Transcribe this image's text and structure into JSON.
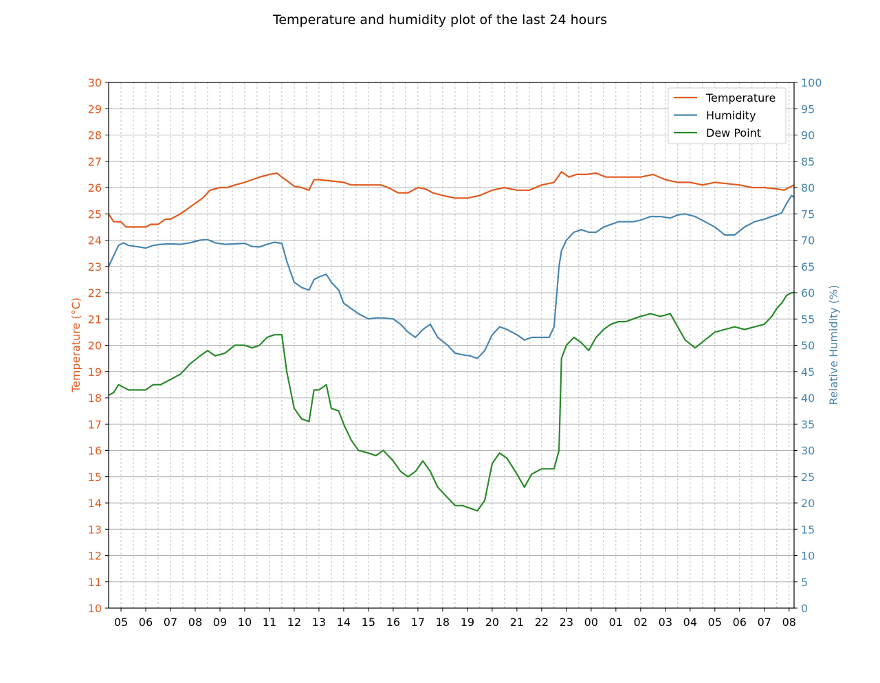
{
  "chart_data": {
    "type": "line",
    "title": "Temperature and humidity plot of the last 24 hours",
    "ylabel_left": "Temperature (°C)",
    "ylabel_right": "Relative Humidity (%)",
    "ylim_left": [
      10,
      30
    ],
    "ylim_right": [
      0,
      100
    ],
    "y_ticks_left": [
      "10",
      "11",
      "12",
      "13",
      "14",
      "15",
      "16",
      "17",
      "18",
      "19",
      "20",
      "21",
      "22",
      "23",
      "24",
      "25",
      "26",
      "27",
      "28",
      "29",
      "30"
    ],
    "y_ticks_right": [
      "0",
      "5",
      "10",
      "15",
      "20",
      "25",
      "30",
      "35",
      "40",
      "45",
      "50",
      "55",
      "60",
      "65",
      "70",
      "75",
      "80",
      "85",
      "90",
      "95",
      "100"
    ],
    "x_tick_labels": [
      "05",
      "06",
      "07",
      "08",
      "09",
      "10",
      "11",
      "12",
      "13",
      "14",
      "15",
      "16",
      "17",
      "18",
      "19",
      "20",
      "21",
      "22",
      "23",
      "00",
      "01",
      "02",
      "03",
      "04",
      "05",
      "06",
      "07",
      "08"
    ],
    "x_range_hours": [
      4.5,
      32.2
    ],
    "grid": true,
    "legend_position": "top-right",
    "colors": {
      "temperature": "#e05a1e",
      "humidity": "#4a86b0",
      "dew_point": "#2a8a2a",
      "axis": "#000000",
      "grid": "#b0b0b0"
    },
    "series": [
      {
        "name": "Temperature",
        "axis": "left",
        "color": "#e05a1e",
        "x": [
          4.5,
          4.7,
          5.0,
          5.2,
          5.5,
          6.0,
          6.2,
          6.5,
          6.8,
          7.0,
          7.4,
          7.7,
          8.0,
          8.3,
          8.6,
          9.0,
          9.3,
          9.6,
          10.0,
          10.3,
          10.6,
          11.0,
          11.3,
          11.5,
          11.8,
          12.0,
          12.3,
          12.6,
          12.8,
          13.0,
          13.5,
          14.0,
          14.3,
          14.6,
          15.0,
          15.5,
          15.8,
          16.2,
          16.6,
          17.0,
          17.3,
          17.6,
          18.0,
          18.5,
          19.0,
          19.5,
          20.0,
          20.5,
          21.0,
          21.5,
          22.0,
          22.5,
          22.8,
          23.1,
          23.4,
          23.8,
          24.2,
          24.6,
          25.0,
          25.5,
          26.0,
          26.5,
          27.0,
          27.5,
          28.0,
          28.5,
          29.0,
          29.5,
          30.0,
          30.5,
          31.0,
          31.5,
          31.8,
          32.0,
          32.2
        ],
        "y": [
          25.0,
          24.7,
          24.7,
          24.5,
          24.5,
          24.5,
          24.6,
          24.6,
          24.8,
          24.8,
          25.0,
          25.2,
          25.4,
          25.6,
          25.9,
          26.0,
          26.0,
          26.1,
          26.2,
          26.3,
          26.4,
          26.5,
          26.55,
          26.4,
          26.2,
          26.05,
          26.0,
          25.9,
          26.3,
          26.3,
          26.25,
          26.2,
          26.1,
          26.1,
          26.1,
          26.1,
          26.0,
          25.8,
          25.8,
          26.0,
          25.95,
          25.8,
          25.7,
          25.6,
          25.6,
          25.7,
          25.9,
          26.0,
          25.9,
          25.9,
          26.1,
          26.2,
          26.6,
          26.4,
          26.5,
          26.5,
          26.55,
          26.4,
          26.4,
          26.4,
          26.4,
          26.5,
          26.3,
          26.2,
          26.2,
          26.1,
          26.2,
          26.15,
          26.1,
          26.0,
          26.0,
          25.95,
          25.9,
          26.0,
          26.1
        ]
      },
      {
        "name": "Humidity",
        "axis": "right",
        "color": "#4a86b0",
        "x": [
          4.5,
          4.7,
          4.9,
          5.1,
          5.3,
          5.6,
          6.0,
          6.3,
          6.6,
          7.0,
          7.4,
          7.8,
          8.2,
          8.5,
          8.8,
          9.2,
          9.6,
          10.0,
          10.3,
          10.6,
          10.9,
          11.2,
          11.5,
          11.7,
          12.0,
          12.3,
          12.6,
          12.8,
          13.0,
          13.3,
          13.5,
          13.8,
          14.0,
          14.3,
          14.6,
          15.0,
          15.3,
          15.6,
          16.0,
          16.3,
          16.6,
          16.9,
          17.2,
          17.5,
          17.8,
          18.2,
          18.5,
          18.8,
          19.1,
          19.4,
          19.7,
          20.0,
          20.3,
          20.6,
          21.0,
          21.3,
          21.6,
          22.0,
          22.3,
          22.5,
          22.7,
          22.8,
          23.0,
          23.3,
          23.6,
          23.9,
          24.2,
          24.5,
          24.8,
          25.1,
          25.4,
          25.7,
          26.0,
          26.4,
          26.8,
          27.2,
          27.5,
          27.8,
          28.2,
          28.6,
          29.0,
          29.4,
          29.8,
          30.2,
          30.6,
          31.0,
          31.3,
          31.5,
          31.7,
          31.9,
          32.1,
          32.2
        ],
        "y": [
          65,
          67,
          69,
          69.5,
          69,
          68.8,
          68.5,
          69,
          69.2,
          69.3,
          69.2,
          69.5,
          70,
          70.1,
          69.5,
          69.2,
          69.3,
          69.4,
          68.8,
          68.7,
          69.2,
          69.6,
          69.4,
          66,
          62,
          61,
          60.5,
          62.5,
          63,
          63.5,
          62,
          60.5,
          58,
          57,
          56,
          55,
          55.2,
          55.2,
          55,
          54,
          52.5,
          51.5,
          53,
          54,
          51.5,
          50,
          48.5,
          48.2,
          48,
          47.5,
          49,
          52,
          53.5,
          53,
          52,
          51,
          51.5,
          51.5,
          51.5,
          53.5,
          65,
          68,
          70,
          71.5,
          72,
          71.5,
          71.5,
          72.5,
          73,
          73.5,
          73.5,
          73.5,
          73.8,
          74.5,
          74.5,
          74.2,
          74.8,
          75,
          74.5,
          73.5,
          72.5,
          71,
          71,
          72.5,
          73.5,
          74,
          74.5,
          74.8,
          75.2,
          77,
          78.5,
          78.2
        ]
      },
      {
        "name": "Dew Point",
        "axis": "left",
        "color": "#2a8a2a",
        "x": [
          4.5,
          4.7,
          4.9,
          5.1,
          5.3,
          5.6,
          6.0,
          6.3,
          6.6,
          7.0,
          7.4,
          7.8,
          8.2,
          8.5,
          8.8,
          9.2,
          9.6,
          10.0,
          10.3,
          10.6,
          10.9,
          11.2,
          11.5,
          11.7,
          12.0,
          12.3,
          12.6,
          12.8,
          13.0,
          13.3,
          13.5,
          13.8,
          14.0,
          14.3,
          14.6,
          15.0,
          15.3,
          15.6,
          16.0,
          16.3,
          16.6,
          16.9,
          17.2,
          17.5,
          17.8,
          18.2,
          18.5,
          18.8,
          19.1,
          19.4,
          19.7,
          20.0,
          20.3,
          20.6,
          21.0,
          21.3,
          21.6,
          22.0,
          22.3,
          22.5,
          22.7,
          22.8,
          23.0,
          23.3,
          23.6,
          23.9,
          24.2,
          24.5,
          24.8,
          25.1,
          25.4,
          25.7,
          26.0,
          26.4,
          26.8,
          27.2,
          27.5,
          27.8,
          28.2,
          28.6,
          29.0,
          29.4,
          29.8,
          30.2,
          30.6,
          31.0,
          31.3,
          31.5,
          31.7,
          31.9,
          32.1,
          32.2
        ],
        "y": [
          18.1,
          18.2,
          18.5,
          18.4,
          18.3,
          18.3,
          18.3,
          18.5,
          18.5,
          18.7,
          18.9,
          19.3,
          19.6,
          19.8,
          19.6,
          19.7,
          20.0,
          20.0,
          19.9,
          20.0,
          20.3,
          20.4,
          20.4,
          19.0,
          17.6,
          17.2,
          17.1,
          18.3,
          18.3,
          18.5,
          17.6,
          17.5,
          17.0,
          16.4,
          16.0,
          15.9,
          15.8,
          16.0,
          15.6,
          15.2,
          15.0,
          15.2,
          15.6,
          15.2,
          14.6,
          14.2,
          13.9,
          13.9,
          13.8,
          13.7,
          14.1,
          15.5,
          15.9,
          15.7,
          15.1,
          14.6,
          15.1,
          15.3,
          15.3,
          15.3,
          16.0,
          19.5,
          20.0,
          20.3,
          20.1,
          19.8,
          20.3,
          20.6,
          20.8,
          20.9,
          20.9,
          21.0,
          21.1,
          21.2,
          21.1,
          21.2,
          20.7,
          20.2,
          19.9,
          20.2,
          20.5,
          20.6,
          20.7,
          20.6,
          20.7,
          20.8,
          21.1,
          21.4,
          21.6,
          21.9,
          22.0,
          22.0
        ]
      }
    ]
  }
}
